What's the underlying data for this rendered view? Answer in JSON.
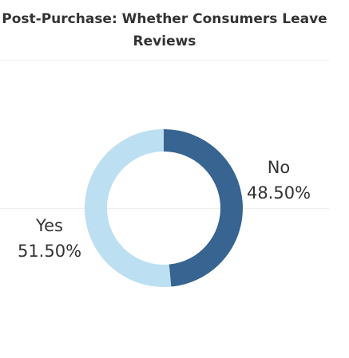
{
  "chart_data": {
    "type": "pie",
    "variant": "donut",
    "title": "Post-Purchase: Whether Consumers Leave Reviews",
    "slices": [
      {
        "label": "No",
        "value": 48.5,
        "value_label": "48.50%",
        "color": "#376491"
      },
      {
        "label": "Yes",
        "value": 51.5,
        "value_label": "51.50%",
        "color": "#bcdff2"
      }
    ],
    "start": "12 o'clock",
    "direction": "clockwise",
    "legend": "none"
  }
}
